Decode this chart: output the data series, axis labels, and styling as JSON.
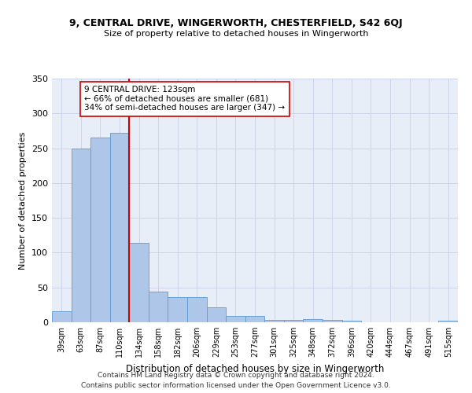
{
  "title1": "9, CENTRAL DRIVE, WINGERWORTH, CHESTERFIELD, S42 6QJ",
  "title2": "Size of property relative to detached houses in Wingerworth",
  "xlabel": "Distribution of detached houses by size in Wingerworth",
  "ylabel": "Number of detached properties",
  "categories": [
    "39sqm",
    "63sqm",
    "87sqm",
    "110sqm",
    "134sqm",
    "158sqm",
    "182sqm",
    "206sqm",
    "229sqm",
    "253sqm",
    "277sqm",
    "301sqm",
    "325sqm",
    "348sqm",
    "372sqm",
    "396sqm",
    "420sqm",
    "444sqm",
    "467sqm",
    "491sqm",
    "515sqm"
  ],
  "values": [
    16,
    249,
    265,
    272,
    114,
    44,
    36,
    36,
    22,
    9,
    9,
    3,
    3,
    4,
    3,
    2,
    0,
    0,
    0,
    0,
    2
  ],
  "bar_color": "#aec6e8",
  "bar_edge_color": "#5b9bd5",
  "vline_color": "#cc0000",
  "annotation_text": "9 CENTRAL DRIVE: 123sqm\n← 66% of detached houses are smaller (681)\n34% of semi-detached houses are larger (347) →",
  "annotation_box_color": "#ffffff",
  "annotation_box_edge": "#cc0000",
  "grid_color": "#ccd6e8",
  "background_color": "#e8eef8",
  "footer1": "Contains HM Land Registry data © Crown copyright and database right 2024.",
  "footer2": "Contains public sector information licensed under the Open Government Licence v3.0.",
  "ylim": [
    0,
    350
  ],
  "yticks": [
    0,
    50,
    100,
    150,
    200,
    250,
    300,
    350
  ],
  "vline_pos": 3.5
}
